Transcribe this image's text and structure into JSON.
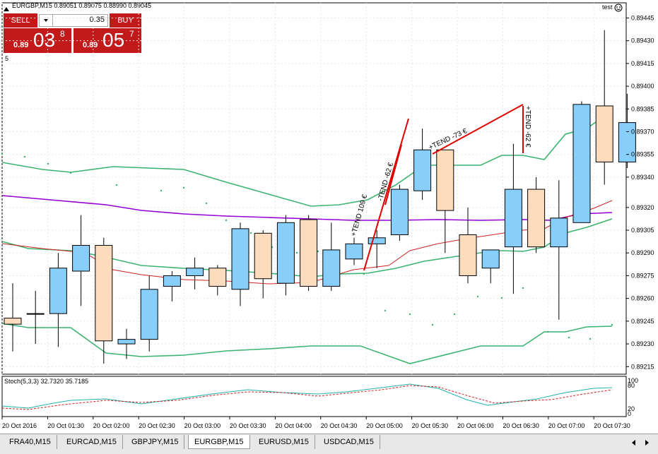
{
  "window": {
    "symbol_info": "EURGBP,M15",
    "ohlc_text": "0.89051 0.89075 0.88990 0.89045",
    "indicator_label": "test",
    "smiley_icon": "smiley-icon",
    "side_number": "5"
  },
  "trade_panel": {
    "sell_label": "SELL",
    "buy_label": "BUY",
    "lot_value": "0.35",
    "sell_prefix": "0.89",
    "sell_big": "03",
    "sell_sup": "8",
    "buy_prefix": "0.89",
    "buy_big": "05",
    "buy_sup": "7",
    "color_sell": "#c21a1a",
    "color_buy": "#c21a1a"
  },
  "price_axis": [
    "0.89445",
    "0.89430",
    "0.89415",
    "0.89400",
    "0.89385",
    "0.89370",
    "0.89355",
    "0.89340",
    "0.89320",
    "0.89305",
    "0.89290",
    "0.89275",
    "0.89260",
    "0.89245",
    "0.89230",
    "0.89215"
  ],
  "time_axis": [
    "20 Oct 2016",
    "20 Oct 01:30",
    "20 Oct 02:00",
    "20 Oct 02:30",
    "20 Oct 03:00",
    "20 Oct 03:30",
    "20 Oct 04:00",
    "20 Oct 04:30",
    "20 Oct 05:00",
    "20 Oct 05:30",
    "20 Oct 06:00",
    "20 Oct 06:30",
    "20 Oct 07:00",
    "20 Oct 07:30"
  ],
  "annotations": [
    "+TEND 109 €",
    "-TEND -62 €",
    "+TEND -73 €",
    "+TEND -62 €"
  ],
  "stoch": {
    "label": "Stoch(5,3,3) 32.7320 35.7185",
    "axis": [
      "100",
      "80",
      "20",
      "0"
    ]
  },
  "tabs": [
    "FRA40,M15",
    "EURCAD,M15",
    "GBPJPY,M15",
    "EURGBP,M15",
    "EURUSD,M15",
    "USDCAD,M15"
  ],
  "active_tab": "EURGBP,M15",
  "colors": {
    "bull": "#87cefa",
    "bear": "#fddcbe",
    "bollinger": "#3cb371",
    "ma_long": "#9400d3",
    "ma_short": "#cc2222",
    "trend_line": "#dd0000",
    "stoch_main": "#20b2aa",
    "stoch_signal": "#cc2222"
  },
  "chart_data": {
    "type": "candlestick",
    "title": "EURGBP,M15",
    "ylim": [
      0.8921,
      0.89455
    ],
    "candles": [
      {
        "o": 0.89247,
        "h": 0.8927,
        "l": 0.89225,
        "c": 0.89243
      },
      {
        "o": 0.8925,
        "h": 0.89265,
        "l": 0.8923,
        "c": 0.8925
      },
      {
        "o": 0.8925,
        "h": 0.8929,
        "l": 0.89228,
        "c": 0.8928
      },
      {
        "o": 0.89278,
        "h": 0.89315,
        "l": 0.89255,
        "c": 0.89295
      },
      {
        "o": 0.89295,
        "h": 0.893,
        "l": 0.89217,
        "c": 0.89232
      },
      {
        "o": 0.8923,
        "h": 0.8924,
        "l": 0.8922,
        "c": 0.89233
      },
      {
        "o": 0.89233,
        "h": 0.89275,
        "l": 0.89225,
        "c": 0.89266
      },
      {
        "o": 0.89268,
        "h": 0.89278,
        "l": 0.89258,
        "c": 0.89275
      },
      {
        "o": 0.89275,
        "h": 0.89287,
        "l": 0.89266,
        "c": 0.8928
      },
      {
        "o": 0.8928,
        "h": 0.89282,
        "l": 0.89262,
        "c": 0.89268
      },
      {
        "o": 0.89266,
        "h": 0.8931,
        "l": 0.89255,
        "c": 0.89306
      },
      {
        "o": 0.89303,
        "h": 0.89305,
        "l": 0.8926,
        "c": 0.89273
      },
      {
        "o": 0.8927,
        "h": 0.89315,
        "l": 0.89262,
        "c": 0.8931
      },
      {
        "o": 0.89312,
        "h": 0.89315,
        "l": 0.89265,
        "c": 0.89268
      },
      {
        "o": 0.89268,
        "h": 0.8931,
        "l": 0.89265,
        "c": 0.89292
      },
      {
        "o": 0.89286,
        "h": 0.893,
        "l": 0.89282,
        "c": 0.89296
      },
      {
        "o": 0.89296,
        "h": 0.89305,
        "l": 0.8928,
        "c": 0.893
      },
      {
        "o": 0.89302,
        "h": 0.89335,
        "l": 0.89298,
        "c": 0.89332
      },
      {
        "o": 0.89331,
        "h": 0.89372,
        "l": 0.89325,
        "c": 0.89358
      },
      {
        "o": 0.89358,
        "h": 0.89358,
        "l": 0.8929,
        "c": 0.89318
      },
      {
        "o": 0.89302,
        "h": 0.8932,
        "l": 0.8927,
        "c": 0.89275
      },
      {
        "o": 0.8928,
        "h": 0.89292,
        "l": 0.8927,
        "c": 0.89292
      },
      {
        "o": 0.89294,
        "h": 0.89362,
        "l": 0.89263,
        "c": 0.89332
      },
      {
        "o": 0.89332,
        "h": 0.8934,
        "l": 0.8929,
        "c": 0.89294
      },
      {
        "o": 0.89294,
        "h": 0.89338,
        "l": 0.89246,
        "c": 0.89313
      },
      {
        "o": 0.8931,
        "h": 0.8939,
        "l": 0.8931,
        "c": 0.89388
      },
      {
        "o": 0.89387,
        "h": 0.89437,
        "l": 0.89335,
        "c": 0.8935
      },
      {
        "o": 0.8935,
        "h": 0.89395,
        "l": 0.89346,
        "c": 0.89376
      }
    ]
  }
}
